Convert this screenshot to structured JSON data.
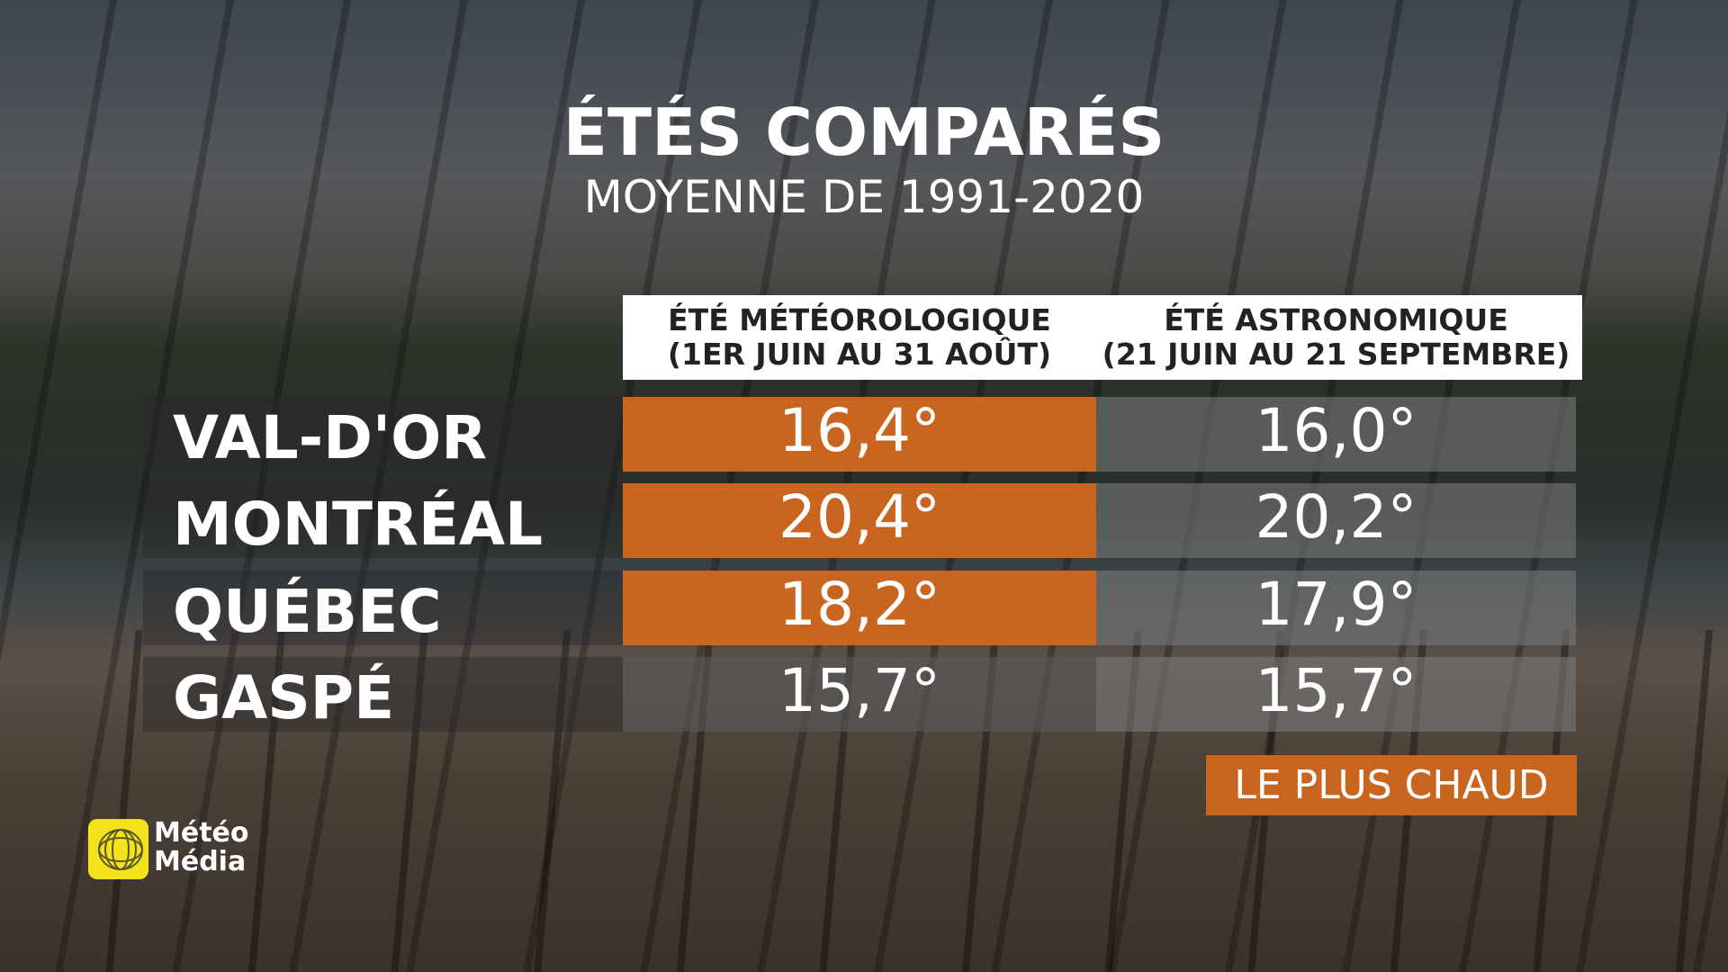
{
  "header": {
    "title": "ÉTÉS COMPARÉS",
    "subtitle": "MOYENNE DE 1991-2020"
  },
  "table": {
    "columns": [
      {
        "line1": "ÉTÉ MÉTÉOROLOGIQUE",
        "line2": "(1ER JUIN AU 31 AOÛT)"
      },
      {
        "line1": "ÉTÉ ASTRONOMIQUE",
        "line2": "(21 JUIN AU 21 SEPTEMBRE)"
      }
    ],
    "rows": [
      {
        "city": "VAL-D'OR",
        "cells": [
          {
            "text": "16,4°",
            "highlight": true
          },
          {
            "text": "16,0°",
            "highlight": false
          }
        ]
      },
      {
        "city": "MONTRÉAL",
        "cells": [
          {
            "text": "20,4°",
            "highlight": true
          },
          {
            "text": "20,2°",
            "highlight": false
          }
        ]
      },
      {
        "city": "QUÉBEC",
        "cells": [
          {
            "text": "18,2°",
            "highlight": true
          },
          {
            "text": "17,9°",
            "highlight": false
          }
        ]
      },
      {
        "city": "GASPÉ",
        "cells": [
          {
            "text": "15,7°",
            "highlight": false
          },
          {
            "text": "15,7°",
            "highlight": false
          }
        ]
      }
    ]
  },
  "legend": {
    "label": "LE PLUS CHAUD",
    "color": "#c9651f"
  },
  "logo": {
    "line1": "Météo",
    "line2": "Média"
  }
}
